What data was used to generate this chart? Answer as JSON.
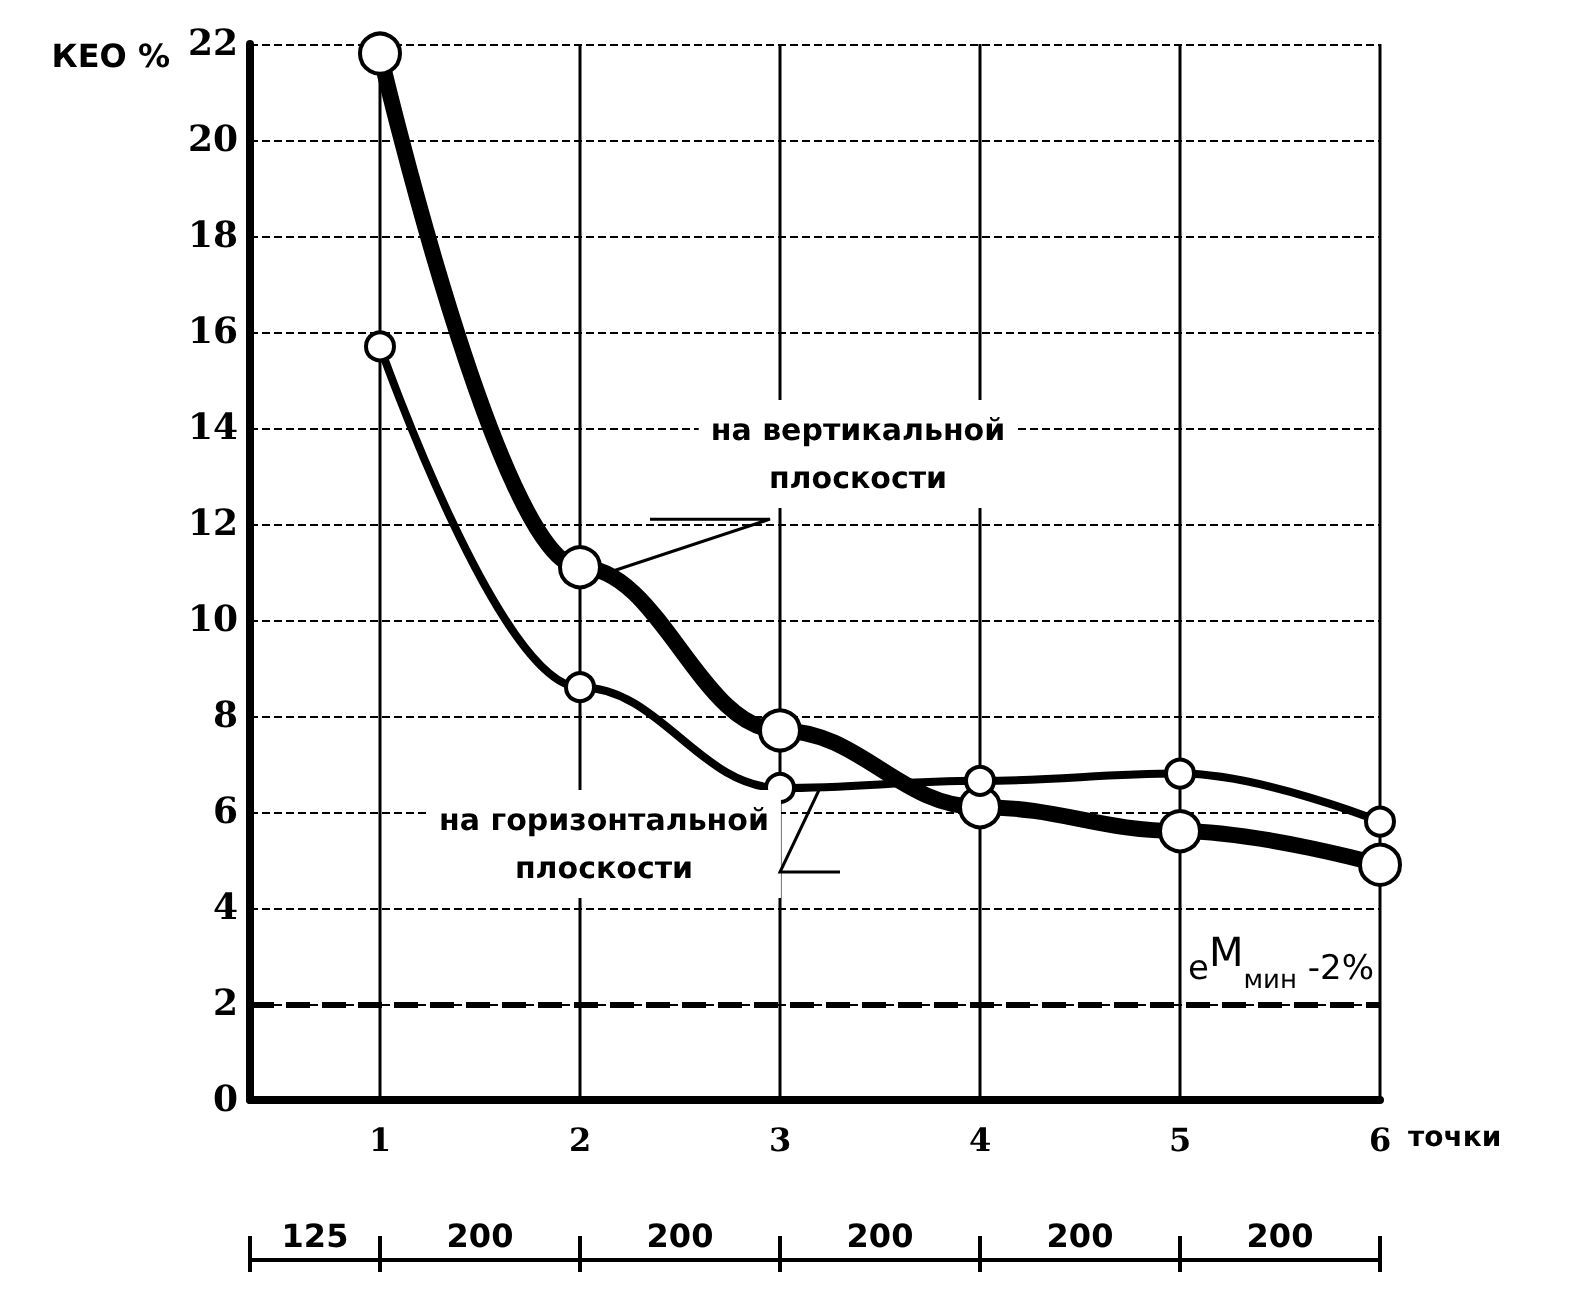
{
  "chart_data": {
    "type": "line",
    "ylabel": "КЕО %",
    "xlabel": "точки",
    "x": [
      1,
      2,
      3,
      4,
      5,
      6
    ],
    "series": [
      {
        "name": "на вертикальной плоскости",
        "color": "#000000",
        "values": [
          21.8,
          11.1,
          7.7,
          6.1,
          5.6,
          4.9
        ]
      },
      {
        "name": "на горизонтальной плоскости",
        "color": "#000000",
        "values": [
          15.7,
          8.6,
          6.5,
          6.65,
          6.8,
          5.8
        ]
      }
    ],
    "xlim": [
      0.35,
      6
    ],
    "xticks": [
      1,
      2,
      3,
      4,
      5,
      6
    ],
    "ylim": [
      0,
      22
    ],
    "yticks": [
      0,
      2,
      4,
      6,
      8,
      10,
      12,
      14,
      16,
      18,
      20,
      22
    ],
    "grid": true,
    "marker": "circle",
    "line_style": "solid",
    "legend": false,
    "ref_lines": [
      {
        "axis": "y",
        "value": 2,
        "label": "e$^{М}$$_{мин}$ -2%",
        "line_style": "dashed",
        "color": "#000000"
      }
    ],
    "annotations": [
      "125",
      "200",
      "200",
      "200",
      "200",
      "200"
    ]
  }
}
